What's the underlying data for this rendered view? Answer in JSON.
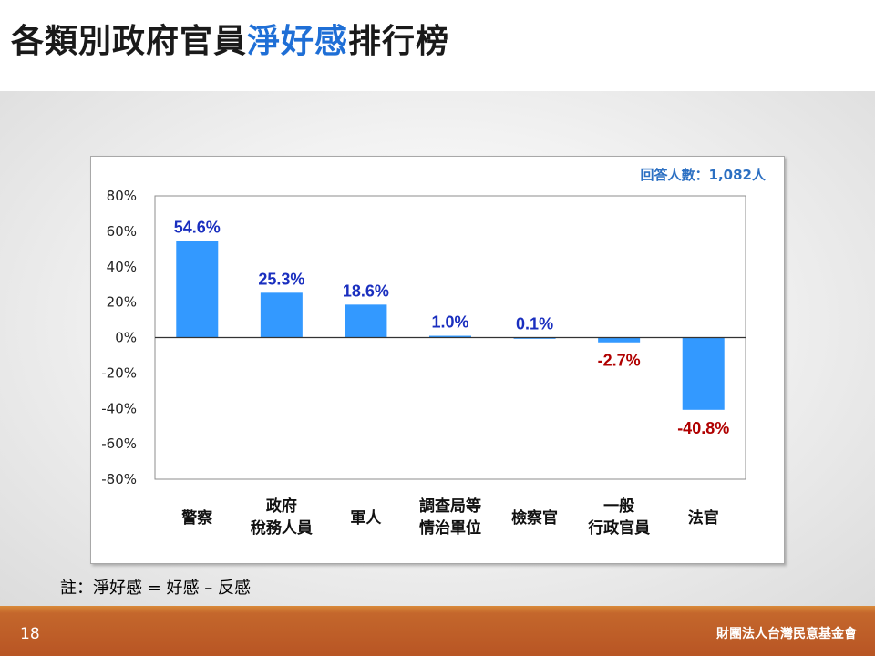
{
  "slide": {
    "title_part1": "各類別政府官員",
    "title_highlight": "淨好感",
    "title_part2": "排行榜",
    "note": "註：淨好感 = 好感 – 反感",
    "page_number": "18",
    "organization": "財團法人台灣民意基金會",
    "colors": {
      "title_highlight": "#1f6fd6",
      "bar": "#3399ff",
      "positive_label": "#1a2fbf",
      "negative_label": "#b00000",
      "footer": "#b85524"
    }
  },
  "chart_data": {
    "type": "bar",
    "respondents_note": "回答人數：1,082人",
    "categories": [
      [
        "警察"
      ],
      [
        "政府",
        "稅務人員"
      ],
      [
        "軍人"
      ],
      [
        "調查局等",
        "情治單位"
      ],
      [
        "檢察官"
      ],
      [
        "一般",
        "行政官員"
      ],
      [
        "法官"
      ]
    ],
    "values": [
      54.6,
      25.3,
      18.6,
      1.0,
      0.1,
      -2.7,
      -40.8
    ],
    "value_labels": [
      "54.6%",
      "25.3%",
      "18.6%",
      "1.0%",
      "0.1%",
      "-2.7%",
      "-40.8%"
    ],
    "yticks": [
      "80%",
      "60%",
      "40%",
      "20%",
      "0%",
      "-20%",
      "-40%",
      "-60%",
      "-80%"
    ],
    "ylim": [
      -80,
      80
    ],
    "grid": false
  }
}
